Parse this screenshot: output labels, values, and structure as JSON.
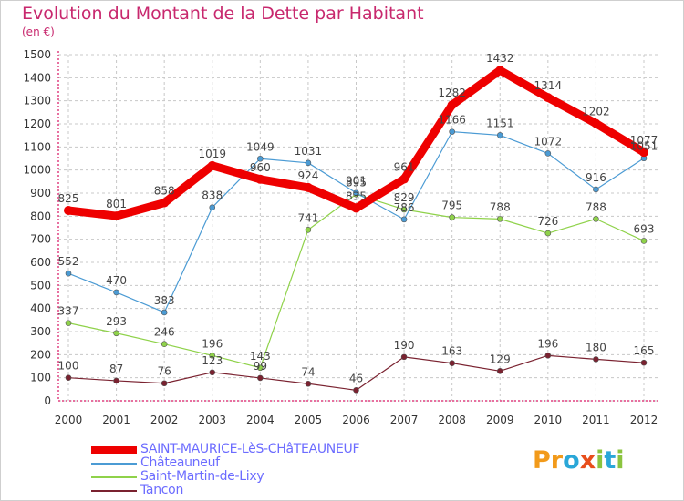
{
  "title": "Evolution du Montant de la Dette par Habitant",
  "subtitle": "(en €)",
  "logo": [
    "P",
    "r",
    "o",
    "x",
    "i",
    "t",
    "i"
  ],
  "chart_data": {
    "type": "line",
    "x": [
      "2000",
      "2001",
      "2002",
      "2003",
      "2004",
      "2005",
      "2006",
      "2007",
      "2008",
      "2009",
      "2010",
      "2011",
      "2012"
    ],
    "ylim": [
      0,
      1500
    ],
    "yticks": [
      0,
      100,
      200,
      300,
      400,
      500,
      600,
      700,
      800,
      900,
      1000,
      1100,
      1200,
      1300,
      1400,
      1500
    ],
    "grid": true,
    "legend_position": "bottom-left",
    "series": [
      {
        "name": "SAINT-MAURICE-LèS-CHâTEAUNEUF",
        "color": "#ee0000",
        "values": [
          825,
          801,
          858,
          1019,
          960,
          924,
          835,
          961,
          1282,
          1432,
          1314,
          1202,
          1077
        ],
        "labels": [
          "825",
          "801",
          "858",
          "1019",
          "960",
          "924",
          "835",
          "961",
          "1282",
          "1432",
          "1314",
          "1202",
          "1077"
        ]
      },
      {
        "name": "Châteauneuf",
        "color": "#4b9bd4",
        "values": [
          552,
          470,
          383,
          838,
          1049,
          1031,
          901,
          786,
          1166,
          1151,
          1072,
          916,
          1051
        ],
        "labels": [
          "552",
          "470",
          "383",
          "838",
          "1049",
          "1031",
          "901",
          "786",
          "1166",
          "1151",
          "1072",
          "916",
          "1051"
        ]
      },
      {
        "name": "Saint-Martin-de-Lixy",
        "color": "#8fd24a",
        "values": [
          337,
          293,
          246,
          196,
          143,
          741,
          895,
          829,
          795,
          788,
          726,
          788,
          693
        ],
        "labels": [
          "337",
          "293",
          "246",
          "196",
          "143",
          "741",
          "895",
          "829",
          "795",
          "788",
          "726",
          "788",
          "693"
        ]
      },
      {
        "name": "Tancon",
        "color": "#7a2230",
        "values": [
          100,
          87,
          76,
          123,
          99,
          74,
          46,
          190,
          163,
          129,
          196,
          180,
          165
        ],
        "labels": [
          "100",
          "87",
          "76",
          "123",
          "99",
          "74",
          "46",
          "190",
          "163",
          "129",
          "196",
          "180",
          "165"
        ]
      }
    ]
  }
}
